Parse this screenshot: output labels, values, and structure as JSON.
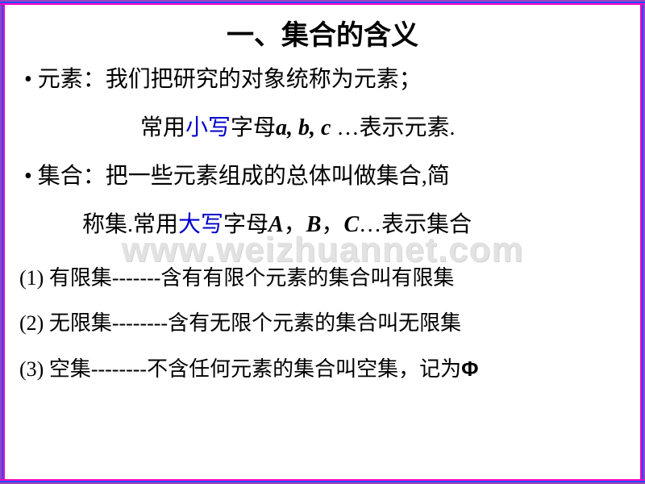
{
  "slide": {
    "title": "一、集合的含义",
    "title_fontsize": 34,
    "title_color": "#000000",
    "lines": [
      {
        "type": "bullet",
        "segments": [
          {
            "t": "• 元素：我们把研究的对象统称为元素；",
            "color": "#000000"
          }
        ]
      },
      {
        "type": "indent",
        "segments": [
          {
            "t": "常用",
            "color": "#000000"
          },
          {
            "t": "小写",
            "color": "#0000cc"
          },
          {
            "t": "字母",
            "color": "#000000"
          },
          {
            "t": "a, b, c",
            "color": "#000000",
            "italicvar": true
          },
          {
            "t": " …表示元素.",
            "color": "#000000"
          }
        ]
      },
      {
        "type": "bullet",
        "segments": [
          {
            "t": "• 集合：把一些元素组成的总体叫做集合,简",
            "color": "#000000"
          }
        ]
      },
      {
        "type": "bullet2",
        "segments": [
          {
            "t": "称集.常用",
            "color": "#000000"
          },
          {
            "t": "大写",
            "color": "#0000cc"
          },
          {
            "t": "字母",
            "color": "#000000"
          },
          {
            "t": "A",
            "color": "#000000",
            "italicvar": true
          },
          {
            "t": "，",
            "color": "#000000"
          },
          {
            "t": "B",
            "color": "#000000",
            "italicvar": true
          },
          {
            "t": "，",
            "color": "#000000"
          },
          {
            "t": "C",
            "color": "#000000",
            "italicvar": true
          },
          {
            "t": "…表示集合",
            "color": "#000000"
          }
        ]
      }
    ],
    "sublines": [
      {
        "label": "(1) 有限集-------含有有限个元素的集合叫有限集"
      },
      {
        "label": "(2) 无限集--------含有无限个元素的集合叫无限集"
      },
      {
        "label_pre": "(3) 空集--------不含任何元素的集合叫空集，记为",
        "phi": "Φ"
      }
    ],
    "body_fontsize": 28,
    "body_line_height": 54,
    "sub_fontsize": 26,
    "sub_line_height": 50,
    "highlight_color": "#0000cc",
    "text_color": "#000000"
  },
  "watermark": {
    "text": "www.weizhuannet.com",
    "color": "#e2e2e2",
    "fontsize": 44
  },
  "border": {
    "outer_purple": "#a040c0",
    "blue": "#2050ff",
    "magenta": "#ff00c0",
    "white": "#ffffff"
  }
}
